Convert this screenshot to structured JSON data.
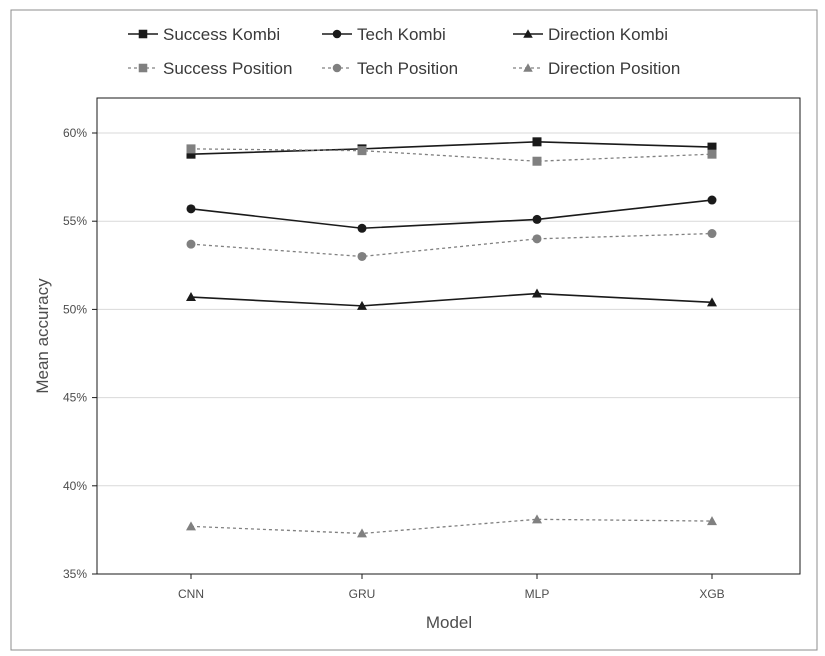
{
  "chart_data": {
    "type": "line",
    "title": "",
    "xlabel": "Model",
    "ylabel": "Mean accuracy",
    "categories": [
      "CNN",
      "GRU",
      "MLP",
      "XGB"
    ],
    "ylim": [
      0.35,
      0.6
    ],
    "yticks": [
      0.35,
      0.4,
      0.45,
      0.5,
      0.55,
      0.6
    ],
    "ytick_labels": [
      "35%",
      "40%",
      "45%",
      "50%",
      "55%",
      "60%"
    ],
    "grid": "horizontal",
    "legend_position": "top",
    "series": [
      {
        "name": "Success Kombi",
        "values": [
          0.588,
          0.591,
          0.595,
          0.592
        ],
        "marker": "square",
        "line": "solid",
        "color": "#1a1a1a"
      },
      {
        "name": "Tech Kombi",
        "values": [
          0.557,
          0.546,
          0.551,
          0.562
        ],
        "marker": "circle",
        "line": "solid",
        "color": "#1a1a1a"
      },
      {
        "name": "Direction Kombi",
        "values": [
          0.507,
          0.502,
          0.509,
          0.504
        ],
        "marker": "triangle",
        "line": "solid",
        "color": "#1a1a1a"
      },
      {
        "name": "Success Position",
        "values": [
          0.591,
          0.59,
          0.584,
          0.588
        ],
        "marker": "square",
        "line": "dashed",
        "color": "#808080"
      },
      {
        "name": "Tech Position",
        "values": [
          0.537,
          0.53,
          0.54,
          0.543
        ],
        "marker": "circle",
        "line": "dashed",
        "color": "#808080"
      },
      {
        "name": "Direction Position",
        "values": [
          0.377,
          0.373,
          0.381,
          0.38
        ],
        "marker": "triangle",
        "line": "dashed",
        "color": "#808080"
      }
    ]
  }
}
